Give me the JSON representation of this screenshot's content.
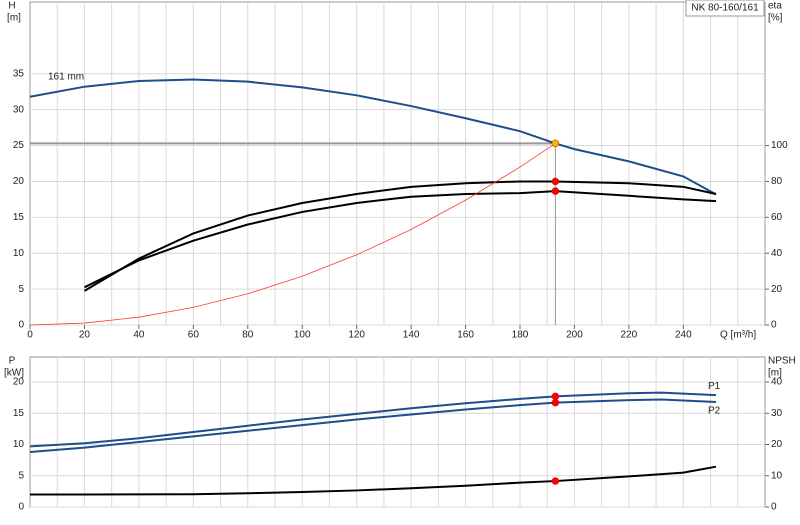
{
  "chart_data": [
    {
      "type": "line",
      "title": "NK 80-160/161",
      "annotations": [
        "161 mm"
      ],
      "x_label": "Q [m³/h]",
      "y_label": "H",
      "y_unit": "[m]",
      "y2_label": "eta",
      "y2_unit": "[%]",
      "xlim": [
        0,
        270
      ],
      "xticks": [
        0,
        20,
        40,
        60,
        80,
        100,
        120,
        140,
        160,
        180,
        200,
        220,
        240
      ],
      "ylim": [
        0,
        45
      ],
      "yticks": [
        0,
        5,
        10,
        15,
        20,
        25,
        30,
        35
      ],
      "y2lim": [
        0,
        180
      ],
      "y2ticks": [
        0,
        20,
        40,
        60,
        80,
        100
      ],
      "series": [
        {
          "color": "#1f4e8c",
          "x": [
            0,
            20,
            40,
            60,
            80,
            100,
            120,
            140,
            160,
            180,
            193,
            200,
            220,
            240,
            252
          ],
          "values": [
            31.8,
            33.2,
            34,
            34.2,
            33.9,
            33.1,
            32,
            30.5,
            28.8,
            27,
            25.3,
            24.5,
            22.8,
            20.7,
            18.2
          ]
        },
        {
          "color": "#000000",
          "axis": "y2",
          "x": [
            20,
            40,
            60,
            80,
            100,
            120,
            140,
            160,
            180,
            193,
            220,
            240,
            252
          ],
          "values": [
            19,
            37,
            51,
            61,
            68,
            73,
            77,
            79,
            80,
            80,
            79,
            77,
            73
          ]
        },
        {
          "color": "#000000",
          "axis": "y2",
          "x": [
            20,
            40,
            60,
            80,
            100,
            120,
            140,
            160,
            180,
            193,
            220,
            240,
            252
          ],
          "values": [
            21,
            36,
            47,
            56,
            63,
            68,
            71.5,
            73,
            73.5,
            74.6,
            72,
            70,
            69
          ]
        },
        {
          "color": "#ff3b30",
          "x": [
            0,
            20,
            40,
            60,
            80,
            100,
            120,
            140,
            160,
            180,
            193
          ],
          "values": [
            0,
            0.27,
            1.09,
            2.45,
            4.35,
            6.79,
            9.78,
            13.3,
            17.4,
            22.0,
            25.3
          ]
        }
      ],
      "markers": [
        {
          "x": 193,
          "value": 25.3,
          "color": "#f5b800"
        },
        {
          "x": 193,
          "value": 80,
          "axis": "y2",
          "color": "#ff0000"
        },
        {
          "x": 193,
          "value": 74.6,
          "axis": "y2",
          "color": "#ff0000"
        }
      ]
    },
    {
      "type": "line",
      "y_label": "P",
      "y_unit": "[kW]",
      "y2_label": "NPSH",
      "y2_unit": "[m]",
      "xlim": [
        0,
        270
      ],
      "ylim": [
        0,
        24
      ],
      "yticks": [
        0,
        5,
        10,
        15,
        20
      ],
      "y2lim": [
        0,
        48
      ],
      "y2ticks": [
        0,
        10,
        20,
        30,
        40
      ],
      "series": [
        {
          "name": "P1",
          "color": "#1f4e8c",
          "x": [
            0,
            20,
            40,
            60,
            80,
            100,
            120,
            140,
            160,
            180,
            193,
            220,
            232,
            252
          ],
          "values": [
            9.7,
            10.2,
            11,
            12,
            13,
            14,
            14.9,
            15.8,
            16.6,
            17.3,
            17.7,
            18.2,
            18.3,
            17.9
          ]
        },
        {
          "name": "P2",
          "color": "#1f4e8c",
          "x": [
            0,
            20,
            40,
            60,
            80,
            100,
            120,
            140,
            160,
            180,
            193,
            220,
            232,
            252
          ],
          "values": [
            8.8,
            9.5,
            10.4,
            11.3,
            12.2,
            13.1,
            14,
            14.8,
            15.6,
            16.3,
            16.7,
            17.1,
            17.2,
            16.8
          ]
        },
        {
          "color": "#000000",
          "axis": "y2",
          "x": [
            0,
            20,
            60,
            80,
            100,
            120,
            140,
            160,
            180,
            193,
            220,
            240,
            252
          ],
          "values": [
            4,
            4,
            4.1,
            4.4,
            4.8,
            5.3,
            6,
            6.8,
            7.8,
            8.3,
            9.8,
            11,
            12.9
          ]
        }
      ],
      "markers": [
        {
          "x": 193,
          "value": 17.7,
          "color": "#ff0000"
        },
        {
          "x": 193,
          "value": 16.7,
          "color": "#ff0000"
        },
        {
          "x": 193,
          "value": 8.3,
          "axis": "y2",
          "color": "#ff0000"
        }
      ]
    }
  ]
}
